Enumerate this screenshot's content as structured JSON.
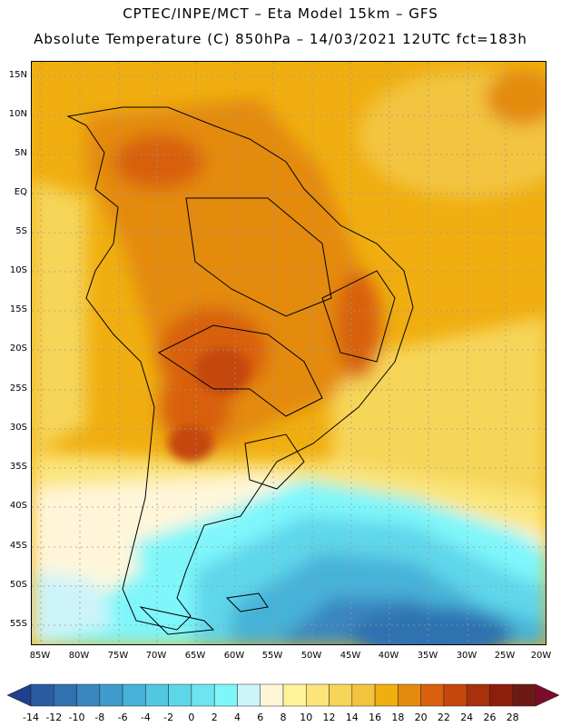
{
  "header": {
    "title_line1": "CPTEC/INPE/MCT –  Eta Model 15km – GFS",
    "title_line2": "Absolute Temperature (C) 850hPa – 14/03/2021 12UTC fct=183h"
  },
  "map": {
    "lat_labels": [
      "15N",
      "10N",
      "5N",
      "EQ",
      "5S",
      "10S",
      "15S",
      "20S",
      "25S",
      "30S",
      "35S",
      "40S",
      "45S",
      "50S",
      "55S"
    ],
    "lon_labels": [
      "85W",
      "80W",
      "75W",
      "70W",
      "65W",
      "60W",
      "55W",
      "50W",
      "45W",
      "40W",
      "35W",
      "30W",
      "25W",
      "20W"
    ],
    "colors": {
      "gridline": "#9a9a9a",
      "coastline": "#000000",
      "background": "#ffffff"
    }
  },
  "colorbar": {
    "labels": [
      "-14",
      "-12",
      "-10",
      "-8",
      "-6",
      "-4",
      "-2",
      "0",
      "2",
      "4",
      "6",
      "8",
      "10",
      "12",
      "14",
      "16",
      "18",
      "20",
      "22",
      "24",
      "26",
      "28"
    ],
    "colors": [
      "#1f3f8f",
      "#2a5aa0",
      "#2f72b0",
      "#3a86c0",
      "#3f9ccc",
      "#46b2d8",
      "#52c8e0",
      "#5ed6ea",
      "#6ee4f0",
      "#7ef6fa",
      "#cdf4fa",
      "#fff6da",
      "#fff29a",
      "#fbe57a",
      "#f6d558",
      "#f2c440",
      "#f0ae10",
      "#e48a10",
      "#d8600e",
      "#c4470c",
      "#a8300a",
      "#8c1f0a",
      "#6e1a14",
      "#7c0a2a"
    ]
  }
}
